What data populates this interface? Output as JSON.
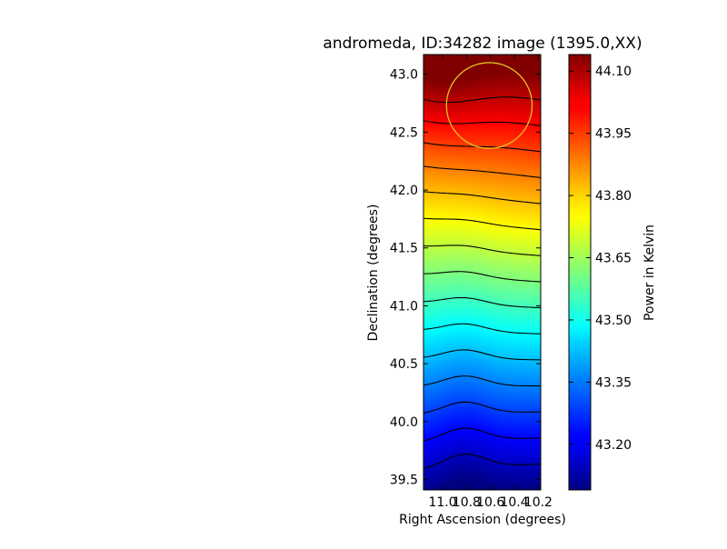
{
  "chart_data": {
    "type": "heatmap",
    "title": "andromeda, ID:34282 image (1395.0,XX)",
    "xlabel": "Right Ascension (degrees)",
    "ylabel": "Declination (degrees)",
    "colorbar_label": "Power in Kelvin",
    "colormap": "jet",
    "xlim": [
      11.16,
      10.18
    ],
    "ylim": [
      39.41,
      43.17
    ],
    "x_ticks": [
      {
        "value": 11.0,
        "label": "11.0"
      },
      {
        "value": 10.8,
        "label": "10.8"
      },
      {
        "value": 10.6,
        "label": "10.6"
      },
      {
        "value": 10.4,
        "label": "10.4"
      },
      {
        "value": 10.2,
        "label": "10.2"
      }
    ],
    "y_ticks": [
      {
        "value": 39.5,
        "label": "39.5"
      },
      {
        "value": 40.0,
        "label": "40.0"
      },
      {
        "value": 40.5,
        "label": "40.5"
      },
      {
        "value": 41.0,
        "label": "41.0"
      },
      {
        "value": 41.5,
        "label": "41.5"
      },
      {
        "value": 42.0,
        "label": "42.0"
      },
      {
        "value": 42.5,
        "label": "42.5"
      },
      {
        "value": 43.0,
        "label": "43.0"
      }
    ],
    "colorbar_range": [
      43.09,
      44.14
    ],
    "colorbar_ticks": [
      {
        "value": 43.2,
        "label": "43.20"
      },
      {
        "value": 43.35,
        "label": "43.35"
      },
      {
        "value": 43.5,
        "label": "43.50"
      },
      {
        "value": 43.65,
        "label": "43.65"
      },
      {
        "value": 43.8,
        "label": "43.80"
      },
      {
        "value": 43.95,
        "label": "43.95"
      },
      {
        "value": 44.1,
        "label": "44.10"
      }
    ],
    "circle": {
      "ra": 10.61,
      "dec": 42.73,
      "radius_deg": 0.37,
      "color": "#e8d020"
    },
    "contour_color": "#000000"
  }
}
